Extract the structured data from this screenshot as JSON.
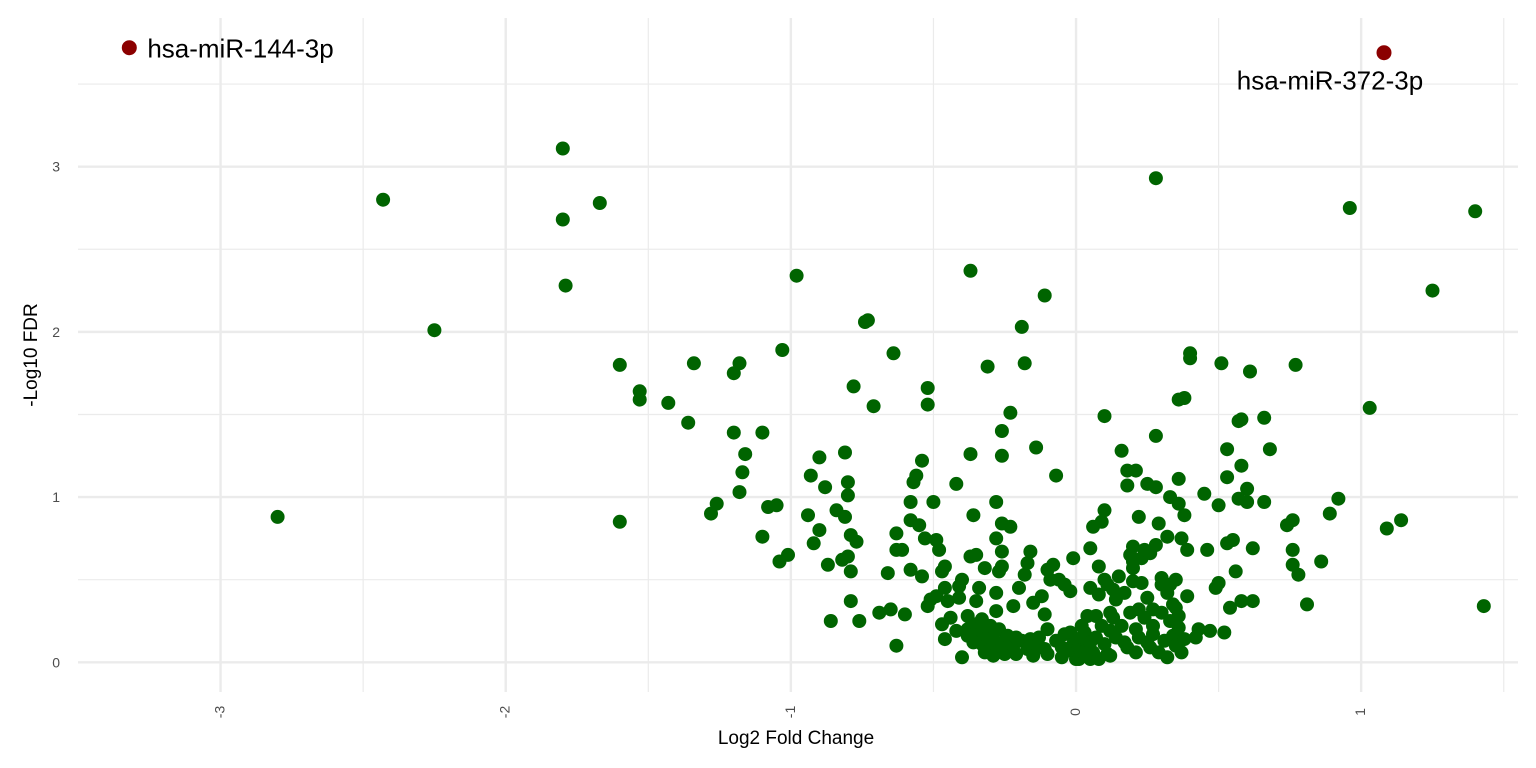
{
  "chart_data": {
    "type": "scatter",
    "xlabel": "Log2 Fold Change",
    "ylabel": "-Log10 FDR",
    "xlim": [
      -3.5,
      1.55
    ],
    "ylim": [
      -0.18,
      3.9
    ],
    "x_ticks": [
      -3,
      -2,
      -1,
      0,
      1
    ],
    "x_tick_labels": [
      "-3",
      "-2",
      "-1",
      "0",
      "1"
    ],
    "y_ticks": [
      0,
      1,
      2,
      3
    ],
    "y_tick_labels": [
      "0",
      "1",
      "2",
      "3"
    ],
    "grid": true,
    "colors": {
      "default": "#006400",
      "highlight": "#8b0000",
      "grid": "#ebebeb"
    },
    "highlighted": [
      {
        "label": "hsa-miR-144-3p",
        "x": -3.32,
        "y": 3.72
      },
      {
        "label": "hsa-miR-372-3p",
        "x": 1.08,
        "y": 3.69
      }
    ],
    "points": [
      [
        -2.8,
        0.88
      ],
      [
        -2.43,
        2.8
      ],
      [
        -2.25,
        2.01
      ],
      [
        -1.8,
        3.11
      ],
      [
        -1.8,
        2.68
      ],
      [
        -1.79,
        2.28
      ],
      [
        -1.67,
        2.78
      ],
      [
        -1.6,
        1.8
      ],
      [
        -1.6,
        0.85
      ],
      [
        -1.53,
        1.64
      ],
      [
        -1.53,
        1.59
      ],
      [
        -1.43,
        1.57
      ],
      [
        -1.36,
        1.45
      ],
      [
        -1.34,
        1.81
      ],
      [
        -1.28,
        0.9
      ],
      [
        -1.26,
        0.96
      ],
      [
        -1.2,
        1.75
      ],
      [
        -1.2,
        1.39
      ],
      [
        -1.18,
        1.81
      ],
      [
        -1.17,
        1.15
      ],
      [
        -1.16,
        1.26
      ],
      [
        -1.18,
        1.03
      ],
      [
        -1.1,
        0.76
      ],
      [
        -1.1,
        1.39
      ],
      [
        -1.08,
        0.94
      ],
      [
        -1.05,
        0.95
      ],
      [
        -1.04,
        0.61
      ],
      [
        -1.03,
        1.89
      ],
      [
        -1.01,
        0.65
      ],
      [
        -0.98,
        2.34
      ],
      [
        -0.94,
        0.89
      ],
      [
        -0.93,
        1.13
      ],
      [
        -0.92,
        0.72
      ],
      [
        -0.9,
        1.24
      ],
      [
        -0.9,
        0.8
      ],
      [
        -0.88,
        1.06
      ],
      [
        -0.87,
        0.59
      ],
      [
        -0.86,
        0.25
      ],
      [
        -0.84,
        0.92
      ],
      [
        -0.82,
        0.62
      ],
      [
        -0.81,
        1.27
      ],
      [
        -0.81,
        0.88
      ],
      [
        -0.8,
        1.01
      ],
      [
        -0.8,
        1.09
      ],
      [
        -0.8,
        0.64
      ],
      [
        -0.79,
        0.55
      ],
      [
        -0.79,
        0.37
      ],
      [
        -0.79,
        0.77
      ],
      [
        -0.78,
        1.67
      ],
      [
        -0.77,
        0.73
      ],
      [
        -0.76,
        0.25
      ],
      [
        -0.74,
        2.06
      ],
      [
        -0.73,
        2.07
      ],
      [
        -0.71,
        1.55
      ],
      [
        -0.69,
        0.3
      ],
      [
        -0.66,
        0.54
      ],
      [
        -0.65,
        0.32
      ],
      [
        -0.64,
        1.87
      ],
      [
        -0.63,
        0.78
      ],
      [
        -0.63,
        0.68
      ],
      [
        -0.63,
        0.1
      ],
      [
        -0.61,
        0.68
      ],
      [
        -0.6,
        0.29
      ],
      [
        -0.58,
        0.86
      ],
      [
        -0.58,
        0.97
      ],
      [
        -0.58,
        0.56
      ],
      [
        -0.57,
        1.09
      ],
      [
        -0.56,
        1.13
      ],
      [
        -0.55,
        0.83
      ],
      [
        -0.54,
        0.52
      ],
      [
        -0.54,
        1.22
      ],
      [
        -0.53,
        0.75
      ],
      [
        -0.52,
        1.66
      ],
      [
        -0.52,
        1.56
      ],
      [
        -0.52,
        0.34
      ],
      [
        -0.51,
        0.38
      ],
      [
        -0.5,
        0.97
      ],
      [
        -0.49,
        0.74
      ],
      [
        -0.49,
        0.4
      ],
      [
        -0.48,
        0.68
      ],
      [
        -0.47,
        0.23
      ],
      [
        -0.47,
        0.55
      ],
      [
        -0.46,
        0.45
      ],
      [
        -0.46,
        0.14
      ],
      [
        -0.46,
        0.58
      ],
      [
        -0.45,
        0.37
      ],
      [
        -0.44,
        0.27
      ],
      [
        -0.42,
        0.19
      ],
      [
        -0.42,
        1.08
      ],
      [
        -0.41,
        0.46
      ],
      [
        -0.41,
        0.39
      ],
      [
        -0.4,
        0.5
      ],
      [
        -0.4,
        0.03
      ],
      [
        -0.38,
        0.16
      ],
      [
        -0.38,
        0.28
      ],
      [
        -0.38,
        0.2
      ],
      [
        -0.37,
        0.64
      ],
      [
        -0.37,
        1.26
      ],
      [
        -0.37,
        2.37
      ],
      [
        -0.36,
        0.89
      ],
      [
        -0.36,
        0.12
      ],
      [
        -0.35,
        0.65
      ],
      [
        -0.35,
        0.37
      ],
      [
        -0.35,
        0.23
      ],
      [
        -0.34,
        0.17
      ],
      [
        -0.34,
        0.45
      ],
      [
        -0.33,
        0.11
      ],
      [
        -0.33,
        0.26
      ],
      [
        -0.33,
        0.19
      ],
      [
        -0.32,
        0.06
      ],
      [
        -0.32,
        0.57
      ],
      [
        -0.31,
        1.79
      ],
      [
        -0.31,
        0.15
      ],
      [
        -0.3,
        0.08
      ],
      [
        -0.3,
        0.22
      ],
      [
        -0.29,
        0.14
      ],
      [
        -0.29,
        0.04
      ],
      [
        -0.28,
        0.31
      ],
      [
        -0.28,
        0.97
      ],
      [
        -0.28,
        0.75
      ],
      [
        -0.28,
        0.42
      ],
      [
        -0.27,
        0.55
      ],
      [
        -0.27,
        0.2
      ],
      [
        -0.26,
        0.09
      ],
      [
        -0.26,
        0.67
      ],
      [
        -0.26,
        0.84
      ],
      [
        -0.26,
        0.58
      ],
      [
        -0.26,
        1.25
      ],
      [
        -0.26,
        1.4
      ],
      [
        -0.25,
        0.13
      ],
      [
        -0.25,
        0.05
      ],
      [
        -0.24,
        0.16
      ],
      [
        -0.23,
        0.82
      ],
      [
        -0.23,
        1.51
      ],
      [
        -0.22,
        0.34
      ],
      [
        -0.22,
        0.1
      ],
      [
        -0.21,
        0.15
      ],
      [
        -0.21,
        0.05
      ],
      [
        -0.2,
        0.45
      ],
      [
        -0.19,
        0.13
      ],
      [
        -0.19,
        2.03
      ],
      [
        -0.18,
        0.53
      ],
      [
        -0.18,
        1.81
      ],
      [
        -0.17,
        0.08
      ],
      [
        -0.17,
        0.6
      ],
      [
        -0.16,
        0.67
      ],
      [
        -0.16,
        0.14
      ],
      [
        -0.15,
        0.04
      ],
      [
        -0.15,
        0.36
      ],
      [
        -0.14,
        1.3
      ],
      [
        -0.14,
        0.11
      ],
      [
        -0.13,
        0.15
      ],
      [
        -0.12,
        0.4
      ],
      [
        -0.11,
        2.22
      ],
      [
        -0.11,
        0.29
      ],
      [
        -0.11,
        0.08
      ],
      [
        -0.1,
        0.56
      ],
      [
        -0.1,
        0.2
      ],
      [
        -0.1,
        0.05
      ],
      [
        -0.09,
        0.5
      ],
      [
        -0.08,
        0.59
      ],
      [
        -0.07,
        0.13
      ],
      [
        -0.07,
        1.13
      ],
      [
        -0.06,
        0.5
      ],
      [
        -0.05,
        0.09
      ],
      [
        -0.05,
        0.03
      ],
      [
        -0.04,
        0.17
      ],
      [
        -0.04,
        0.47
      ],
      [
        -0.03,
        0.07
      ],
      [
        -0.02,
        0.43
      ],
      [
        -0.02,
        0.18
      ],
      [
        -0.01,
        0.11
      ],
      [
        -0.01,
        0.63
      ],
      [
        0,
        0.02
      ],
      [
        0,
        0.06
      ],
      [
        0,
        0.13
      ],
      [
        0.01,
        0.09
      ],
      [
        0.01,
        0.02
      ],
      [
        0.02,
        0.22
      ],
      [
        0.02,
        0.15
      ],
      [
        0.03,
        0.05
      ],
      [
        0.03,
        0.18
      ],
      [
        0.04,
        0.11
      ],
      [
        0.04,
        0.28
      ],
      [
        0.04,
        0.08
      ],
      [
        0.05,
        0.02
      ],
      [
        0.05,
        0.12
      ],
      [
        0.05,
        0.45
      ],
      [
        0.05,
        0.69
      ],
      [
        0.06,
        0.82
      ],
      [
        0.06,
        0.06
      ],
      [
        0.07,
        0.28
      ],
      [
        0.07,
        0.15
      ],
      [
        0.08,
        0.58
      ],
      [
        0.08,
        0.41
      ],
      [
        0.08,
        0.02
      ],
      [
        0.09,
        0.85
      ],
      [
        0.09,
        0.22
      ],
      [
        0.1,
        0.92
      ],
      [
        0.1,
        0.11
      ],
      [
        0.1,
        0.5
      ],
      [
        0.1,
        1.49
      ],
      [
        0.11,
        0.05
      ],
      [
        0.11,
        0.47
      ],
      [
        0.12,
        0.3
      ],
      [
        0.12,
        0.19
      ],
      [
        0.12,
        0.04
      ],
      [
        0.13,
        0.27
      ],
      [
        0.13,
        0.44
      ],
      [
        0.14,
        0.15
      ],
      [
        0.14,
        0.38
      ],
      [
        0.15,
        0.52
      ],
      [
        0.16,
        0.22
      ],
      [
        0.16,
        1.28
      ],
      [
        0.17,
        0.42
      ],
      [
        0.17,
        0.12
      ],
      [
        0.18,
        1.16
      ],
      [
        0.18,
        1.07
      ],
      [
        0.18,
        0.09
      ],
      [
        0.19,
        0.3
      ],
      [
        0.19,
        0.65
      ],
      [
        0.2,
        0.57
      ],
      [
        0.2,
        0.49
      ],
      [
        0.2,
        0.7
      ],
      [
        0.2,
        0.61
      ],
      [
        0.21,
        1.16
      ],
      [
        0.21,
        0.2
      ],
      [
        0.21,
        0.06
      ],
      [
        0.22,
        0.32
      ],
      [
        0.22,
        0.88
      ],
      [
        0.22,
        0.15
      ],
      [
        0.23,
        0.48
      ],
      [
        0.23,
        0.63
      ],
      [
        0.24,
        0.68
      ],
      [
        0.24,
        0.27
      ],
      [
        0.25,
        1.08
      ],
      [
        0.25,
        0.12
      ],
      [
        0.25,
        0.39
      ],
      [
        0.26,
        0.66
      ],
      [
        0.26,
        0.09
      ],
      [
        0.27,
        0.32
      ],
      [
        0.27,
        0.22
      ],
      [
        0.27,
        0.17
      ],
      [
        0.28,
        1.06
      ],
      [
        0.28,
        2.93
      ],
      [
        0.28,
        0.71
      ],
      [
        0.28,
        1.37
      ],
      [
        0.29,
        0.06
      ],
      [
        0.29,
        0.84
      ],
      [
        0.3,
        0.47
      ],
      [
        0.3,
        0.3
      ],
      [
        0.3,
        0.51
      ],
      [
        0.31,
        0.13
      ],
      [
        0.32,
        0.42
      ],
      [
        0.32,
        0.03
      ],
      [
        0.32,
        0.76
      ],
      [
        0.33,
        0.47
      ],
      [
        0.33,
        0.25
      ],
      [
        0.33,
        1.0
      ],
      [
        0.34,
        0.35
      ],
      [
        0.34,
        0.16
      ],
      [
        0.35,
        0.5
      ],
      [
        0.35,
        0.33
      ],
      [
        0.35,
        0.1
      ],
      [
        0.36,
        0.28
      ],
      [
        0.36,
        1.11
      ],
      [
        0.36,
        0.96
      ],
      [
        0.36,
        0.21
      ],
      [
        0.36,
        1.59
      ],
      [
        0.37,
        0.75
      ],
      [
        0.37,
        0.06
      ],
      [
        0.38,
        0.89
      ],
      [
        0.38,
        1.6
      ],
      [
        0.38,
        0.14
      ],
      [
        0.39,
        0.4
      ],
      [
        0.39,
        0.68
      ],
      [
        0.4,
        1.84
      ],
      [
        0.4,
        1.87
      ],
      [
        0.42,
        0.15
      ],
      [
        0.43,
        0.2
      ],
      [
        0.45,
        1.02
      ],
      [
        0.46,
        0.68
      ],
      [
        0.47,
        0.19
      ],
      [
        0.49,
        0.45
      ],
      [
        0.5,
        0.95
      ],
      [
        0.5,
        0.48
      ],
      [
        0.51,
        1.81
      ],
      [
        0.52,
        0.18
      ],
      [
        0.53,
        1.12
      ],
      [
        0.53,
        1.29
      ],
      [
        0.53,
        0.72
      ],
      [
        0.54,
        0.33
      ],
      [
        0.55,
        0.74
      ],
      [
        0.56,
        0.55
      ],
      [
        0.57,
        1.46
      ],
      [
        0.57,
        0.99
      ],
      [
        0.58,
        0.37
      ],
      [
        0.58,
        1.19
      ],
      [
        0.58,
        1.47
      ],
      [
        0.6,
        0.97
      ],
      [
        0.6,
        1.05
      ],
      [
        0.61,
        1.76
      ],
      [
        0.62,
        0.69
      ],
      [
        0.62,
        0.37
      ],
      [
        0.66,
        1.48
      ],
      [
        0.66,
        0.97
      ],
      [
        0.68,
        1.29
      ],
      [
        0.74,
        0.83
      ],
      [
        0.76,
        0.59
      ],
      [
        0.76,
        0.86
      ],
      [
        0.76,
        0.68
      ],
      [
        0.77,
        1.8
      ],
      [
        0.78,
        0.53
      ],
      [
        0.81,
        0.35
      ],
      [
        0.86,
        0.61
      ],
      [
        0.89,
        0.9
      ],
      [
        0.92,
        0.99
      ],
      [
        0.96,
        2.75
      ],
      [
        1.03,
        1.54
      ],
      [
        1.09,
        0.81
      ],
      [
        1.14,
        0.86
      ],
      [
        1.25,
        2.25
      ],
      [
        1.4,
        2.73
      ],
      [
        1.43,
        0.34
      ]
    ]
  }
}
